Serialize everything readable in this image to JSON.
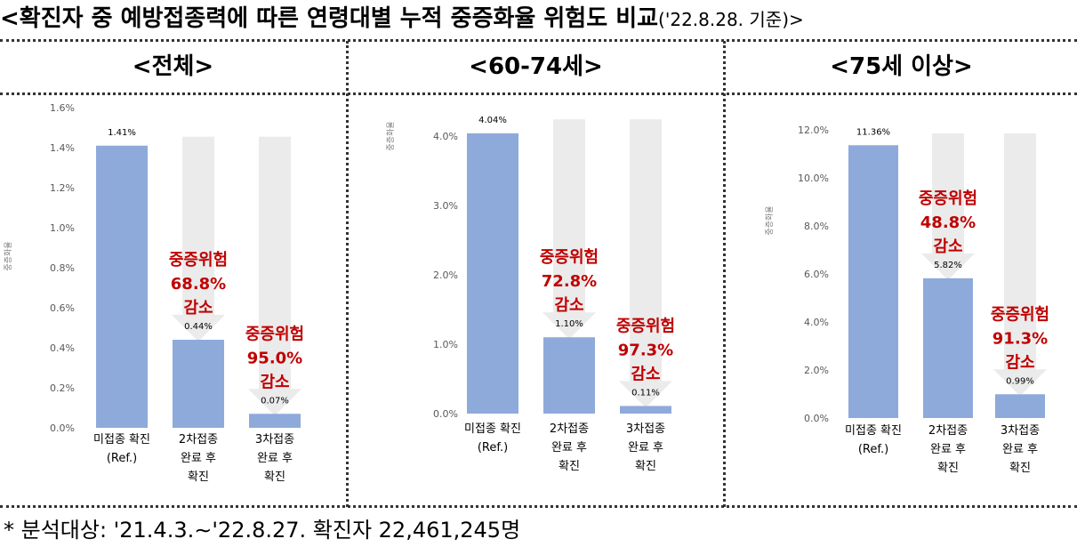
{
  "page": {
    "title_main": "<확진자 중 예방접종력에 따른 연령대별 누적 중증화율 위험도 비교",
    "title_date": "('22.8.28. 기준)>",
    "footnote": "* 분석대상: '21.4.3.∼'22.8.27. 확진자 22,461,245명"
  },
  "colors": {
    "bar": "#8eaadb",
    "arrow": "#ebebeb",
    "risk_text": "#c00000",
    "axis_text": "#595959"
  },
  "chart_data": [
    {
      "type": "bar",
      "title": "<전체>",
      "ylabel": "중증화율",
      "ylim": [
        0,
        0.016
      ],
      "yticks": [
        "0.0%",
        "0.2%",
        "0.4%",
        "0.6%",
        "0.8%",
        "1.0%",
        "1.2%",
        "1.4%",
        "1.6%"
      ],
      "categories": [
        [
          "미접종 확진",
          "(Ref.)"
        ],
        [
          "2차접종",
          "완료 후",
          "확진"
        ],
        [
          "3차접종",
          "완료 후",
          "확진"
        ]
      ],
      "values": [
        0.0141,
        0.0044,
        0.0007
      ],
      "value_labels": [
        "1.41%",
        "0.44%",
        "0.07%"
      ],
      "arrow_top": 0.01455,
      "annotations": [
        null,
        [
          "중증위험",
          "68.8%",
          "감소"
        ],
        [
          "중증위험",
          "95.0%",
          "감소"
        ]
      ]
    },
    {
      "type": "bar",
      "title": "<60-74세>",
      "ylabel": "중증화율",
      "ylim": [
        0,
        0.04
      ],
      "yticks": [
        "0.0%",
        "1.0%",
        "2.0%",
        "3.0%",
        "4.0%"
      ],
      "categories": [
        [
          "미접종 확진",
          "(Ref.)"
        ],
        [
          "2차접종",
          "완료 후",
          "확진"
        ],
        [
          "3차접종",
          "완료 후",
          "확진"
        ]
      ],
      "values": [
        0.0404,
        0.011,
        0.0011
      ],
      "value_labels": [
        "4.04%",
        "1.10%",
        "0.11%"
      ],
      "arrow_top": 0.0424,
      "annotations": [
        null,
        [
          "중증위험",
          "72.8%",
          "감소"
        ],
        [
          "중증위험",
          "97.3%",
          "감소"
        ]
      ]
    },
    {
      "type": "bar",
      "title": "<75세 이상>",
      "ylabel": "중증화율",
      "ylim": [
        0,
        0.12
      ],
      "yticks": [
        "0.0%",
        "2.0%",
        "4.0%",
        "6.0%",
        "8.0%",
        "10.0%",
        "12.0%"
      ],
      "categories": [
        [
          "미접종 확진",
          "(Ref.)"
        ],
        [
          "2차접종",
          "완료 후",
          "확진"
        ],
        [
          "3차접종",
          "완료 후",
          "확진"
        ]
      ],
      "values": [
        0.1136,
        0.0582,
        0.0099
      ],
      "value_labels": [
        "11.36%",
        "5.82%",
        "0.99%"
      ],
      "arrow_top": 0.1185,
      "annotations": [
        null,
        [
          "중증위험",
          "48.8%",
          "감소"
        ],
        [
          "중증위험",
          "91.3%",
          "감소"
        ]
      ]
    }
  ]
}
